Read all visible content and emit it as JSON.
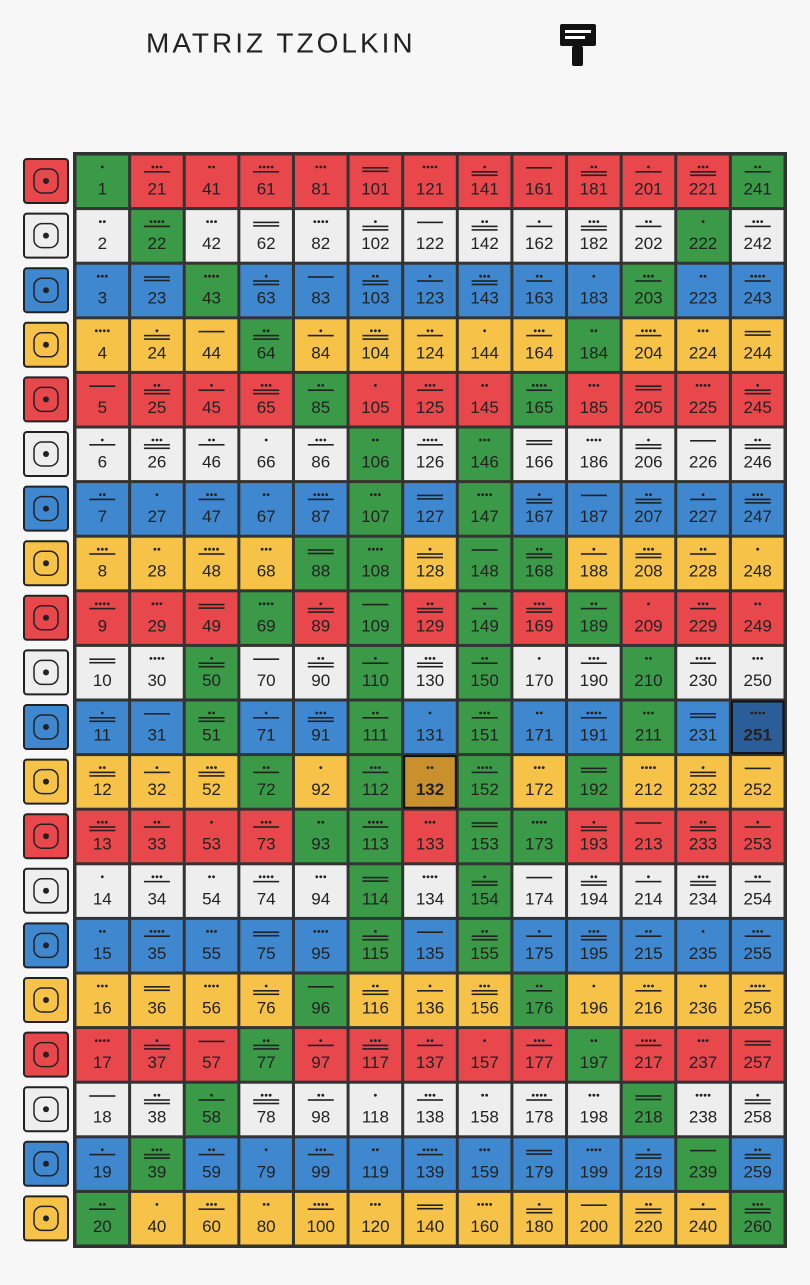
{
  "title": "MATRIZ TZOLKIN",
  "grid": {
    "columns": [
      [
        1,
        2,
        3,
        4,
        5,
        6,
        7,
        8,
        9,
        10,
        11,
        12,
        13,
        14,
        15,
        16,
        17,
        18,
        19,
        20
      ],
      [
        21,
        22,
        23,
        24,
        25,
        26,
        27,
        28,
        29,
        30,
        31,
        32,
        33,
        34,
        35,
        36,
        37,
        38,
        39,
        40
      ],
      [
        41,
        42,
        43,
        44,
        45,
        46,
        47,
        48,
        49,
        50,
        51,
        52,
        53,
        54,
        55,
        56,
        57,
        58,
        59,
        60
      ],
      [
        61,
        62,
        63,
        64,
        65,
        66,
        67,
        68,
        69,
        70,
        71,
        72,
        73,
        74,
        75,
        76,
        77,
        78,
        79,
        80
      ],
      [
        81,
        82,
        83,
        84,
        85,
        86,
        87,
        88,
        89,
        90,
        91,
        92,
        93,
        94,
        95,
        96,
        97,
        98,
        99,
        100
      ],
      [
        101,
        102,
        103,
        104,
        105,
        106,
        107,
        108,
        109,
        110,
        111,
        112,
        113,
        114,
        115,
        116,
        117,
        118,
        119,
        120
      ],
      [
        121,
        122,
        123,
        124,
        125,
        126,
        127,
        128,
        129,
        130,
        131,
        132,
        133,
        134,
        135,
        136,
        137,
        138,
        139,
        140
      ],
      [
        141,
        142,
        143,
        144,
        145,
        146,
        147,
        148,
        149,
        150,
        151,
        152,
        153,
        154,
        155,
        156,
        157,
        158,
        159,
        160
      ],
      [
        161,
        162,
        163,
        164,
        165,
        166,
        167,
        168,
        169,
        170,
        171,
        172,
        173,
        174,
        175,
        176,
        177,
        178,
        179,
        180
      ],
      [
        181,
        182,
        183,
        184,
        185,
        186,
        187,
        188,
        189,
        190,
        191,
        192,
        193,
        194,
        195,
        196,
        197,
        198,
        199,
        200
      ],
      [
        201,
        202,
        203,
        204,
        205,
        206,
        207,
        208,
        209,
        210,
        211,
        212,
        213,
        214,
        215,
        216,
        217,
        218,
        219,
        220
      ],
      [
        221,
        222,
        223,
        224,
        225,
        226,
        227,
        228,
        229,
        230,
        231,
        232,
        233,
        234,
        235,
        236,
        237,
        238,
        239,
        240
      ],
      [
        241,
        242,
        243,
        244,
        245,
        246,
        247,
        248,
        249,
        250,
        251,
        252,
        253,
        254,
        255,
        256,
        257,
        258,
        259,
        260
      ]
    ],
    "seal_colors": [
      "#e8474c",
      "#eeeeee",
      "#3f87cf",
      "#f6c247"
    ],
    "portal_color": "#3a9a47",
    "portals": [
      1,
      20,
      22,
      39,
      43,
      50,
      51,
      58,
      64,
      69,
      72,
      77,
      85,
      88,
      93,
      96,
      106,
      107,
      108,
      109,
      110,
      111,
      112,
      113,
      114,
      115,
      146,
      147,
      148,
      149,
      150,
      151,
      152,
      153,
      154,
      155,
      165,
      168,
      173,
      176,
      184,
      189,
      192,
      197,
      203,
      210,
      211,
      218,
      222,
      239,
      241,
      260
    ],
    "highlighted": [
      {
        "kin": 132,
        "color": "#c8912e"
      },
      {
        "kin": 251,
        "color": "#2b5e98"
      }
    ]
  }
}
